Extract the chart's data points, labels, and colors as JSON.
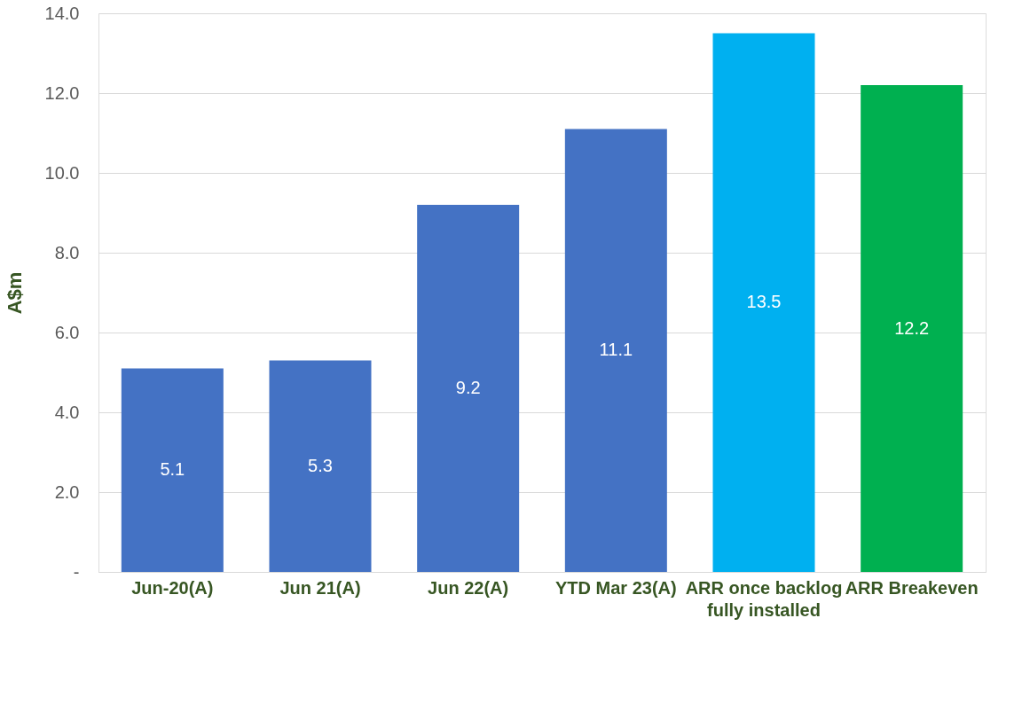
{
  "chart_data": {
    "type": "bar",
    "ylabel": "A$m",
    "categories": [
      "Jun-20(A)",
      "Jun 21(A)",
      "Jun 22(A)",
      "YTD Mar 23(A)",
      "ARR once backlog fully installed",
      "ARR Breakeven"
    ],
    "values": [
      5.1,
      5.3,
      9.2,
      11.1,
      13.5,
      12.2
    ],
    "colors": [
      "#4472c4",
      "#4472c4",
      "#4472c4",
      "#4472c4",
      "#00b0f0",
      "#00b050"
    ],
    "ylim": [
      0,
      14
    ],
    "yticks": [
      {
        "value": 0,
        "label": "-"
      },
      {
        "value": 2,
        "label": "2.0"
      },
      {
        "value": 4,
        "label": "4.0"
      },
      {
        "value": 6,
        "label": "6.0"
      },
      {
        "value": 8,
        "label": "8.0"
      },
      {
        "value": 10,
        "label": "10.0"
      },
      {
        "value": 12,
        "label": "12.0"
      },
      {
        "value": 14,
        "label": "14.0"
      }
    ],
    "grid": "y",
    "data_labels": true
  }
}
